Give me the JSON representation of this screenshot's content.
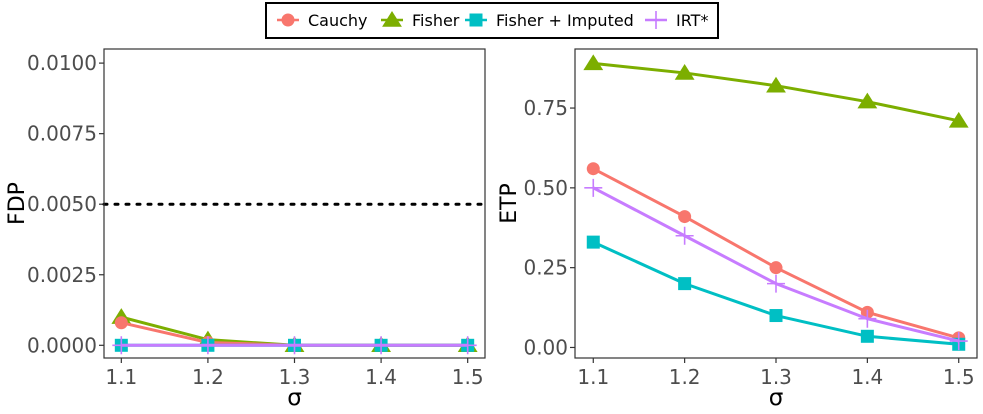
{
  "legend": [
    {
      "name": "Cauchy",
      "color": "#F8766D",
      "marker": "circle"
    },
    {
      "name": "Fisher",
      "color": "#7CAE00",
      "marker": "triangle"
    },
    {
      "name": "Fisher + Imputed",
      "color": "#00BFC4",
      "marker": "square"
    },
    {
      "name": "IRT*",
      "color": "#C77CFF",
      "marker": "plus"
    }
  ],
  "chart_data": [
    {
      "type": "line",
      "xlabel": "σ",
      "ylabel": "FDP",
      "x": [
        1.1,
        1.2,
        1.3,
        1.4,
        1.5
      ],
      "x_tick_labels": [
        "1.1",
        "1.2",
        "1.3",
        "1.4",
        "1.5"
      ],
      "xlim": [
        1.08,
        1.52
      ],
      "ylim": [
        -0.00045,
        0.0105
      ],
      "y_ticks": [
        0,
        0.0025,
        0.005,
        0.0075,
        0.01
      ],
      "y_tick_labels": [
        "0.0000",
        "0.0025",
        "0.0050",
        "0.0075",
        "0.0100"
      ],
      "reference_line": {
        "y": 0.005,
        "style": "dotted"
      },
      "series": [
        {
          "name": "Cauchy",
          "values": [
            0.0008,
            0.0001,
            0.0,
            0.0,
            0.0
          ]
        },
        {
          "name": "Fisher",
          "values": [
            0.001,
            0.0002,
            0.0,
            0.0,
            0.0
          ]
        },
        {
          "name": "Fisher + Imputed",
          "values": [
            0.0,
            0.0,
            0.0,
            0.0,
            0.0
          ]
        },
        {
          "name": "IRT*",
          "values": [
            0.0,
            0.0,
            0.0,
            0.0,
            0.0
          ]
        }
      ]
    },
    {
      "type": "line",
      "xlabel": "σ",
      "ylabel": "ETP",
      "x": [
        1.1,
        1.2,
        1.3,
        1.4,
        1.5
      ],
      "x_tick_labels": [
        "1.1",
        "1.2",
        "1.3",
        "1.4",
        "1.5"
      ],
      "xlim": [
        1.08,
        1.52
      ],
      "ylim": [
        -0.033,
        0.935
      ],
      "y_ticks": [
        0,
        0.25,
        0.5,
        0.75
      ],
      "y_tick_labels": [
        "0.00",
        "0.25",
        "0.50",
        "0.75"
      ],
      "series": [
        {
          "name": "Cauchy",
          "values": [
            0.56,
            0.41,
            0.25,
            0.11,
            0.03
          ]
        },
        {
          "name": "Fisher",
          "values": [
            0.89,
            0.86,
            0.82,
            0.77,
            0.71
          ]
        },
        {
          "name": "Fisher + Imputed",
          "values": [
            0.33,
            0.2,
            0.1,
            0.035,
            0.01
          ]
        },
        {
          "name": "IRT*",
          "values": [
            0.5,
            0.35,
            0.2,
            0.09,
            0.02
          ]
        }
      ]
    }
  ]
}
